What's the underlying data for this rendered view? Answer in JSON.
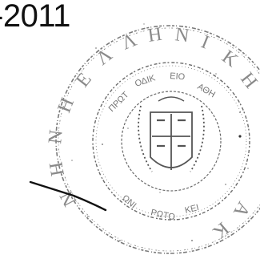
{
  "document": {
    "date_fragment": "-2011"
  },
  "seal": {
    "type": "circular official stamp with coat of arms",
    "ring_text": "ΕΛΛΗΝΙΚΗ ΔΗΜΟΚΡΑΤΙΑ ΠΡΩΤΟΔΙΚΕΙΟ ΑΘΗΝΩΝ",
    "ink_color": "#6f6f6f"
  },
  "signature": {
    "ink_color": "#111111"
  }
}
